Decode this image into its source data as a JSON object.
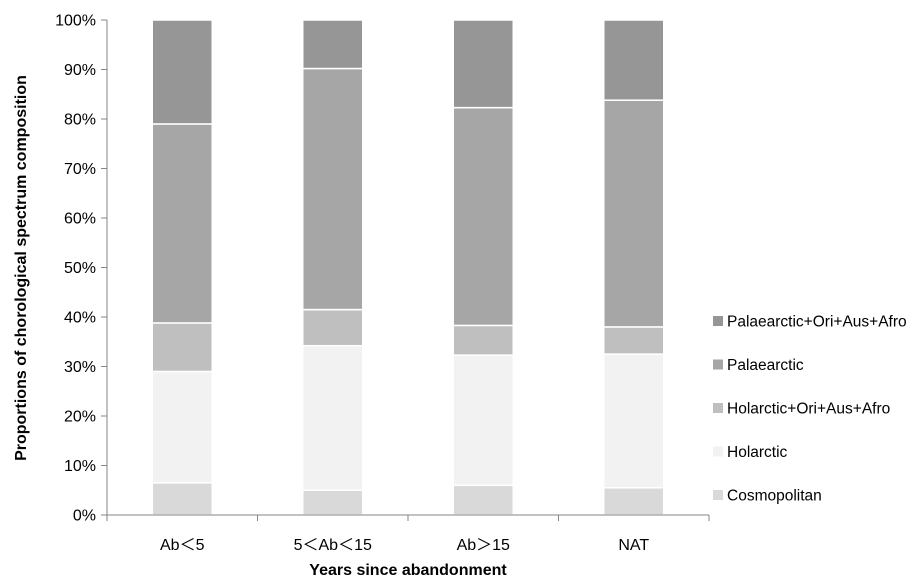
{
  "chart_data": {
    "type": "bar",
    "stacked": true,
    "categories": [
      "Ab＜5",
      "5＜Ab＜15",
      "Ab＞15",
      "NAT"
    ],
    "series": [
      {
        "name": "Cosmopolitan",
        "color": "#d9d9d9",
        "values": [
          6.5,
          5.0,
          6.0,
          5.5
        ]
      },
      {
        "name": "Holarctic",
        "color": "#f2f2f2",
        "values": [
          22.5,
          29.2,
          26.3,
          27.0
        ]
      },
      {
        "name": "Holarctic+Ori+Aus+Afro",
        "color": "#bfbfbf",
        "values": [
          9.8,
          7.3,
          6.0,
          5.5
        ]
      },
      {
        "name": "Palaearctic",
        "color": "#a6a6a6",
        "values": [
          40.2,
          48.7,
          44.0,
          45.8
        ]
      },
      {
        "name": "Palaearctic+Ori+Aus+Afro",
        "color": "#969696",
        "values": [
          21.0,
          9.8,
          17.7,
          16.2
        ]
      }
    ],
    "ylim": [
      0,
      100
    ],
    "yticks": [
      "0%",
      "10%",
      "20%",
      "30%",
      "40%",
      "50%",
      "60%",
      "70%",
      "80%",
      "90%",
      "100%"
    ],
    "xlabel": "Years since abandonment",
    "ylabel": "Proportions of chorological spectrum composition",
    "legend_position": "right",
    "grid": false
  }
}
